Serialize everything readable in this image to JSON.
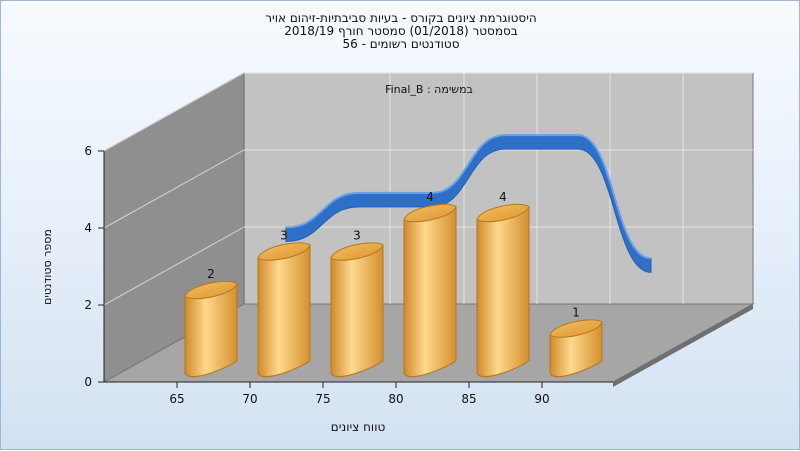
{
  "title_lines": [
    "היסטוגרמת ציונים בקורס - בעיות סביבתיות-זיהום אויר",
    "בסמסטר  (01/2018)  סמסטר חורף 2018/19",
    "סטודנטים רשומים - 56"
  ],
  "colors": {
    "bar": "#f0b052",
    "bar_dark": "#c98828",
    "curve": "#3f7fd6",
    "back_wall": "#c2c2c2",
    "left_wall": "#8f8f8f",
    "floor": "#a5a5a5"
  },
  "chart_data": {
    "type": "bar",
    "subtitle": "במשימה : Final_B",
    "xlabel": "טווח ציונים",
    "ylabel": "מספר סטודנטים",
    "x_ticks": [
      "65",
      "70",
      "75",
      "80",
      "85",
      "90"
    ],
    "y_ticks": [
      "0",
      "2",
      "4",
      "6"
    ],
    "ylim": [
      0,
      6
    ],
    "grid": true,
    "series": [
      {
        "type": "bar",
        "values": [
          2,
          3,
          3,
          4,
          4,
          1
        ],
        "labels": [
          "2",
          "3",
          "3",
          "4",
          "4",
          "1"
        ]
      },
      {
        "type": "line",
        "values": [
          3,
          3.9,
          3.9,
          5.4,
          5.4,
          2.2
        ]
      }
    ]
  }
}
